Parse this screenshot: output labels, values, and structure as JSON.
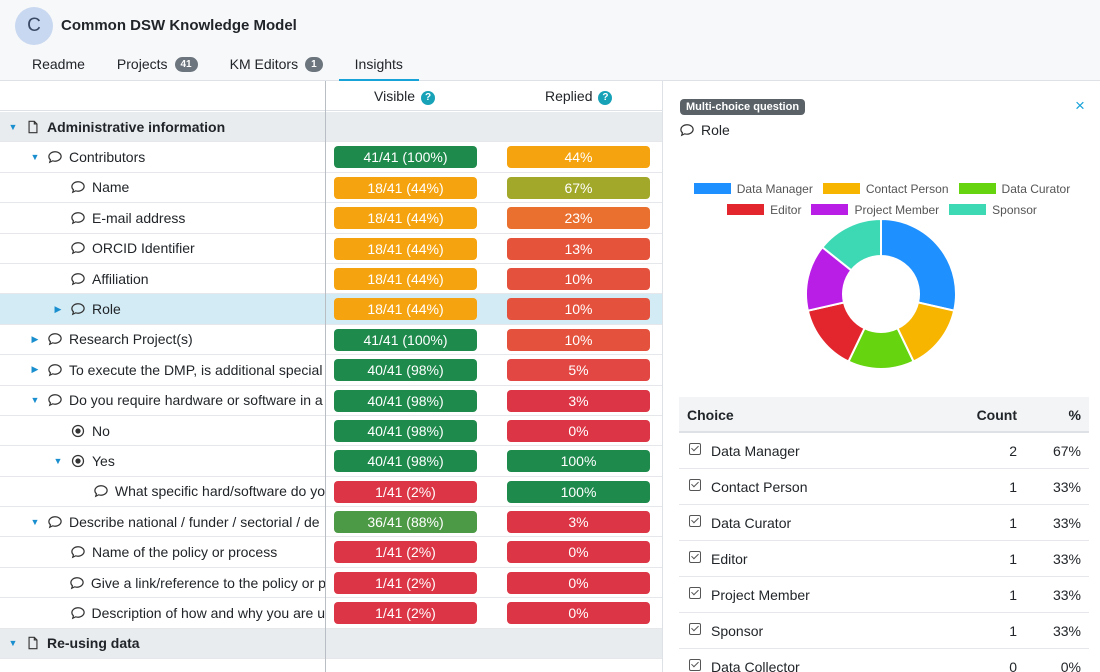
{
  "header": {
    "avatar_letter": "C",
    "title": "Common DSW Knowledge Model",
    "tabs": [
      {
        "label": "Readme",
        "badge": ""
      },
      {
        "label": "Projects",
        "badge": "41"
      },
      {
        "label": "KM Editors",
        "badge": "1"
      },
      {
        "label": "Insights",
        "badge": ""
      }
    ]
  },
  "columns": {
    "visible": "Visible",
    "replied": "Replied",
    "help": "?"
  },
  "rows": [
    {
      "text": "Administrative information",
      "level": 0,
      "caret": "down",
      "icon": "page",
      "chapter": true,
      "visible": "",
      "replied": ""
    },
    {
      "text": "Contributors",
      "level": 1,
      "caret": "down",
      "icon": "comment",
      "visible": "41/41 (100%)",
      "vcolor": "#1e8a4c",
      "replied": "44%",
      "rcolor": "#f5a30e"
    },
    {
      "text": "Name",
      "level": 2,
      "caret": "none",
      "icon": "comment",
      "visible": "18/41 (44%)",
      "vcolor": "#f5a30e",
      "replied": "67%",
      "rcolor": "#a2a82a"
    },
    {
      "text": "E-mail address",
      "level": 2,
      "caret": "none",
      "icon": "comment",
      "visible": "18/41 (44%)",
      "vcolor": "#f5a30e",
      "replied": "23%",
      "rcolor": "#ea7030"
    },
    {
      "text": "ORCID Identifier",
      "level": 2,
      "caret": "none",
      "icon": "comment",
      "visible": "18/41 (44%)",
      "vcolor": "#f5a30e",
      "replied": "13%",
      "rcolor": "#e5533b"
    },
    {
      "text": "Affiliation",
      "level": 2,
      "caret": "none",
      "icon": "comment",
      "visible": "18/41 (44%)",
      "vcolor": "#f5a30e",
      "replied": "10%",
      "rcolor": "#e4513d"
    },
    {
      "text": "Role",
      "level": 2,
      "caret": "right",
      "icon": "comment",
      "selected": true,
      "visible": "18/41 (44%)",
      "vcolor": "#f5a30e",
      "replied": "10%",
      "rcolor": "#e4513d"
    },
    {
      "text": "Research Project(s)",
      "level": 1,
      "caret": "right",
      "icon": "comment",
      "visible": "41/41 (100%)",
      "vcolor": "#1e8a4c",
      "replied": "10%",
      "rcolor": "#e4513d"
    },
    {
      "text": "To execute the DMP, is additional special",
      "level": 1,
      "caret": "right",
      "icon": "comment",
      "visible": "40/41 (98%)",
      "vcolor": "#1e8a4c",
      "replied": "5%",
      "rcolor": "#e24743"
    },
    {
      "text": "Do you require hardware or software in a",
      "level": 1,
      "caret": "down",
      "icon": "comment",
      "visible": "40/41 (98%)",
      "vcolor": "#1e8a4c",
      "replied": "3%",
      "rcolor": "#dc3545"
    },
    {
      "text": "No",
      "level": 2,
      "caret": "none",
      "icon": "radio",
      "visible": "40/41 (98%)",
      "vcolor": "#1e8a4c",
      "replied": "0%",
      "rcolor": "#dc3545"
    },
    {
      "text": "Yes",
      "level": 2,
      "caret": "down",
      "icon": "radio",
      "visible": "40/41 (98%)",
      "vcolor": "#1e8a4c",
      "replied": "100%",
      "rcolor": "#1e8a4c"
    },
    {
      "text": "What specific hard/software do yo",
      "level": 3,
      "caret": "none",
      "icon": "comment",
      "visible": "1/41 (2%)",
      "vcolor": "#dc3545",
      "replied": "100%",
      "rcolor": "#1e8a4c"
    },
    {
      "text": "Describe national / funder / sectorial / de",
      "level": 1,
      "caret": "down",
      "icon": "comment",
      "visible": "36/41 (88%)",
      "vcolor": "#4c9a45",
      "replied": "3%",
      "rcolor": "#dc3545"
    },
    {
      "text": "Name of the policy or process",
      "level": 2,
      "caret": "none",
      "icon": "comment",
      "visible": "1/41 (2%)",
      "vcolor": "#dc3545",
      "replied": "0%",
      "rcolor": "#dc3545"
    },
    {
      "text": "Give a link/reference to the policy or p",
      "level": 2,
      "caret": "none",
      "icon": "comment",
      "visible": "1/41 (2%)",
      "vcolor": "#dc3545",
      "replied": "0%",
      "rcolor": "#dc3545"
    },
    {
      "text": "Description of how and why you are u",
      "level": 2,
      "caret": "none",
      "icon": "comment",
      "visible": "1/41 (2%)",
      "vcolor": "#dc3545",
      "replied": "0%",
      "rcolor": "#dc3545"
    },
    {
      "text": "Re-using data",
      "level": 0,
      "caret": "down",
      "icon": "page",
      "chapter": true,
      "visible": "",
      "replied": ""
    },
    {
      "text": "",
      "level": 1,
      "caret": "none",
      "icon": "none",
      "cut": true,
      "visible": "",
      "vcolor": "#4c9a45",
      "replied": "",
      "rcolor": "#ea7030"
    }
  ],
  "panel": {
    "badge": "Multi-choice question",
    "close": "×",
    "question": "Role",
    "chart_data": {
      "type": "pie",
      "donut": true,
      "legend_position": "top",
      "series": [
        {
          "name": "Data Manager",
          "value": 2,
          "color": "#1e90ff"
        },
        {
          "name": "Contact Person",
          "value": 1,
          "color": "#f7b500"
        },
        {
          "name": "Data Curator",
          "value": 1,
          "color": "#66d40e"
        },
        {
          "name": "Editor",
          "value": 1,
          "color": "#e3262d"
        },
        {
          "name": "Project Member",
          "value": 1,
          "color": "#b91ee6"
        },
        {
          "name": "Sponsor",
          "value": 1,
          "color": "#3dd9b5"
        }
      ]
    },
    "table": {
      "headers": {
        "choice": "Choice",
        "count": "Count",
        "pct": "%"
      },
      "rows": [
        {
          "choice": "Data Manager",
          "count": "2",
          "pct": "67%"
        },
        {
          "choice": "Contact Person",
          "count": "1",
          "pct": "33%"
        },
        {
          "choice": "Data Curator",
          "count": "1",
          "pct": "33%"
        },
        {
          "choice": "Editor",
          "count": "1",
          "pct": "33%"
        },
        {
          "choice": "Project Member",
          "count": "1",
          "pct": "33%"
        },
        {
          "choice": "Sponsor",
          "count": "1",
          "pct": "33%"
        },
        {
          "choice": "Data Collector",
          "count": "0",
          "pct": "0%"
        }
      ]
    }
  }
}
